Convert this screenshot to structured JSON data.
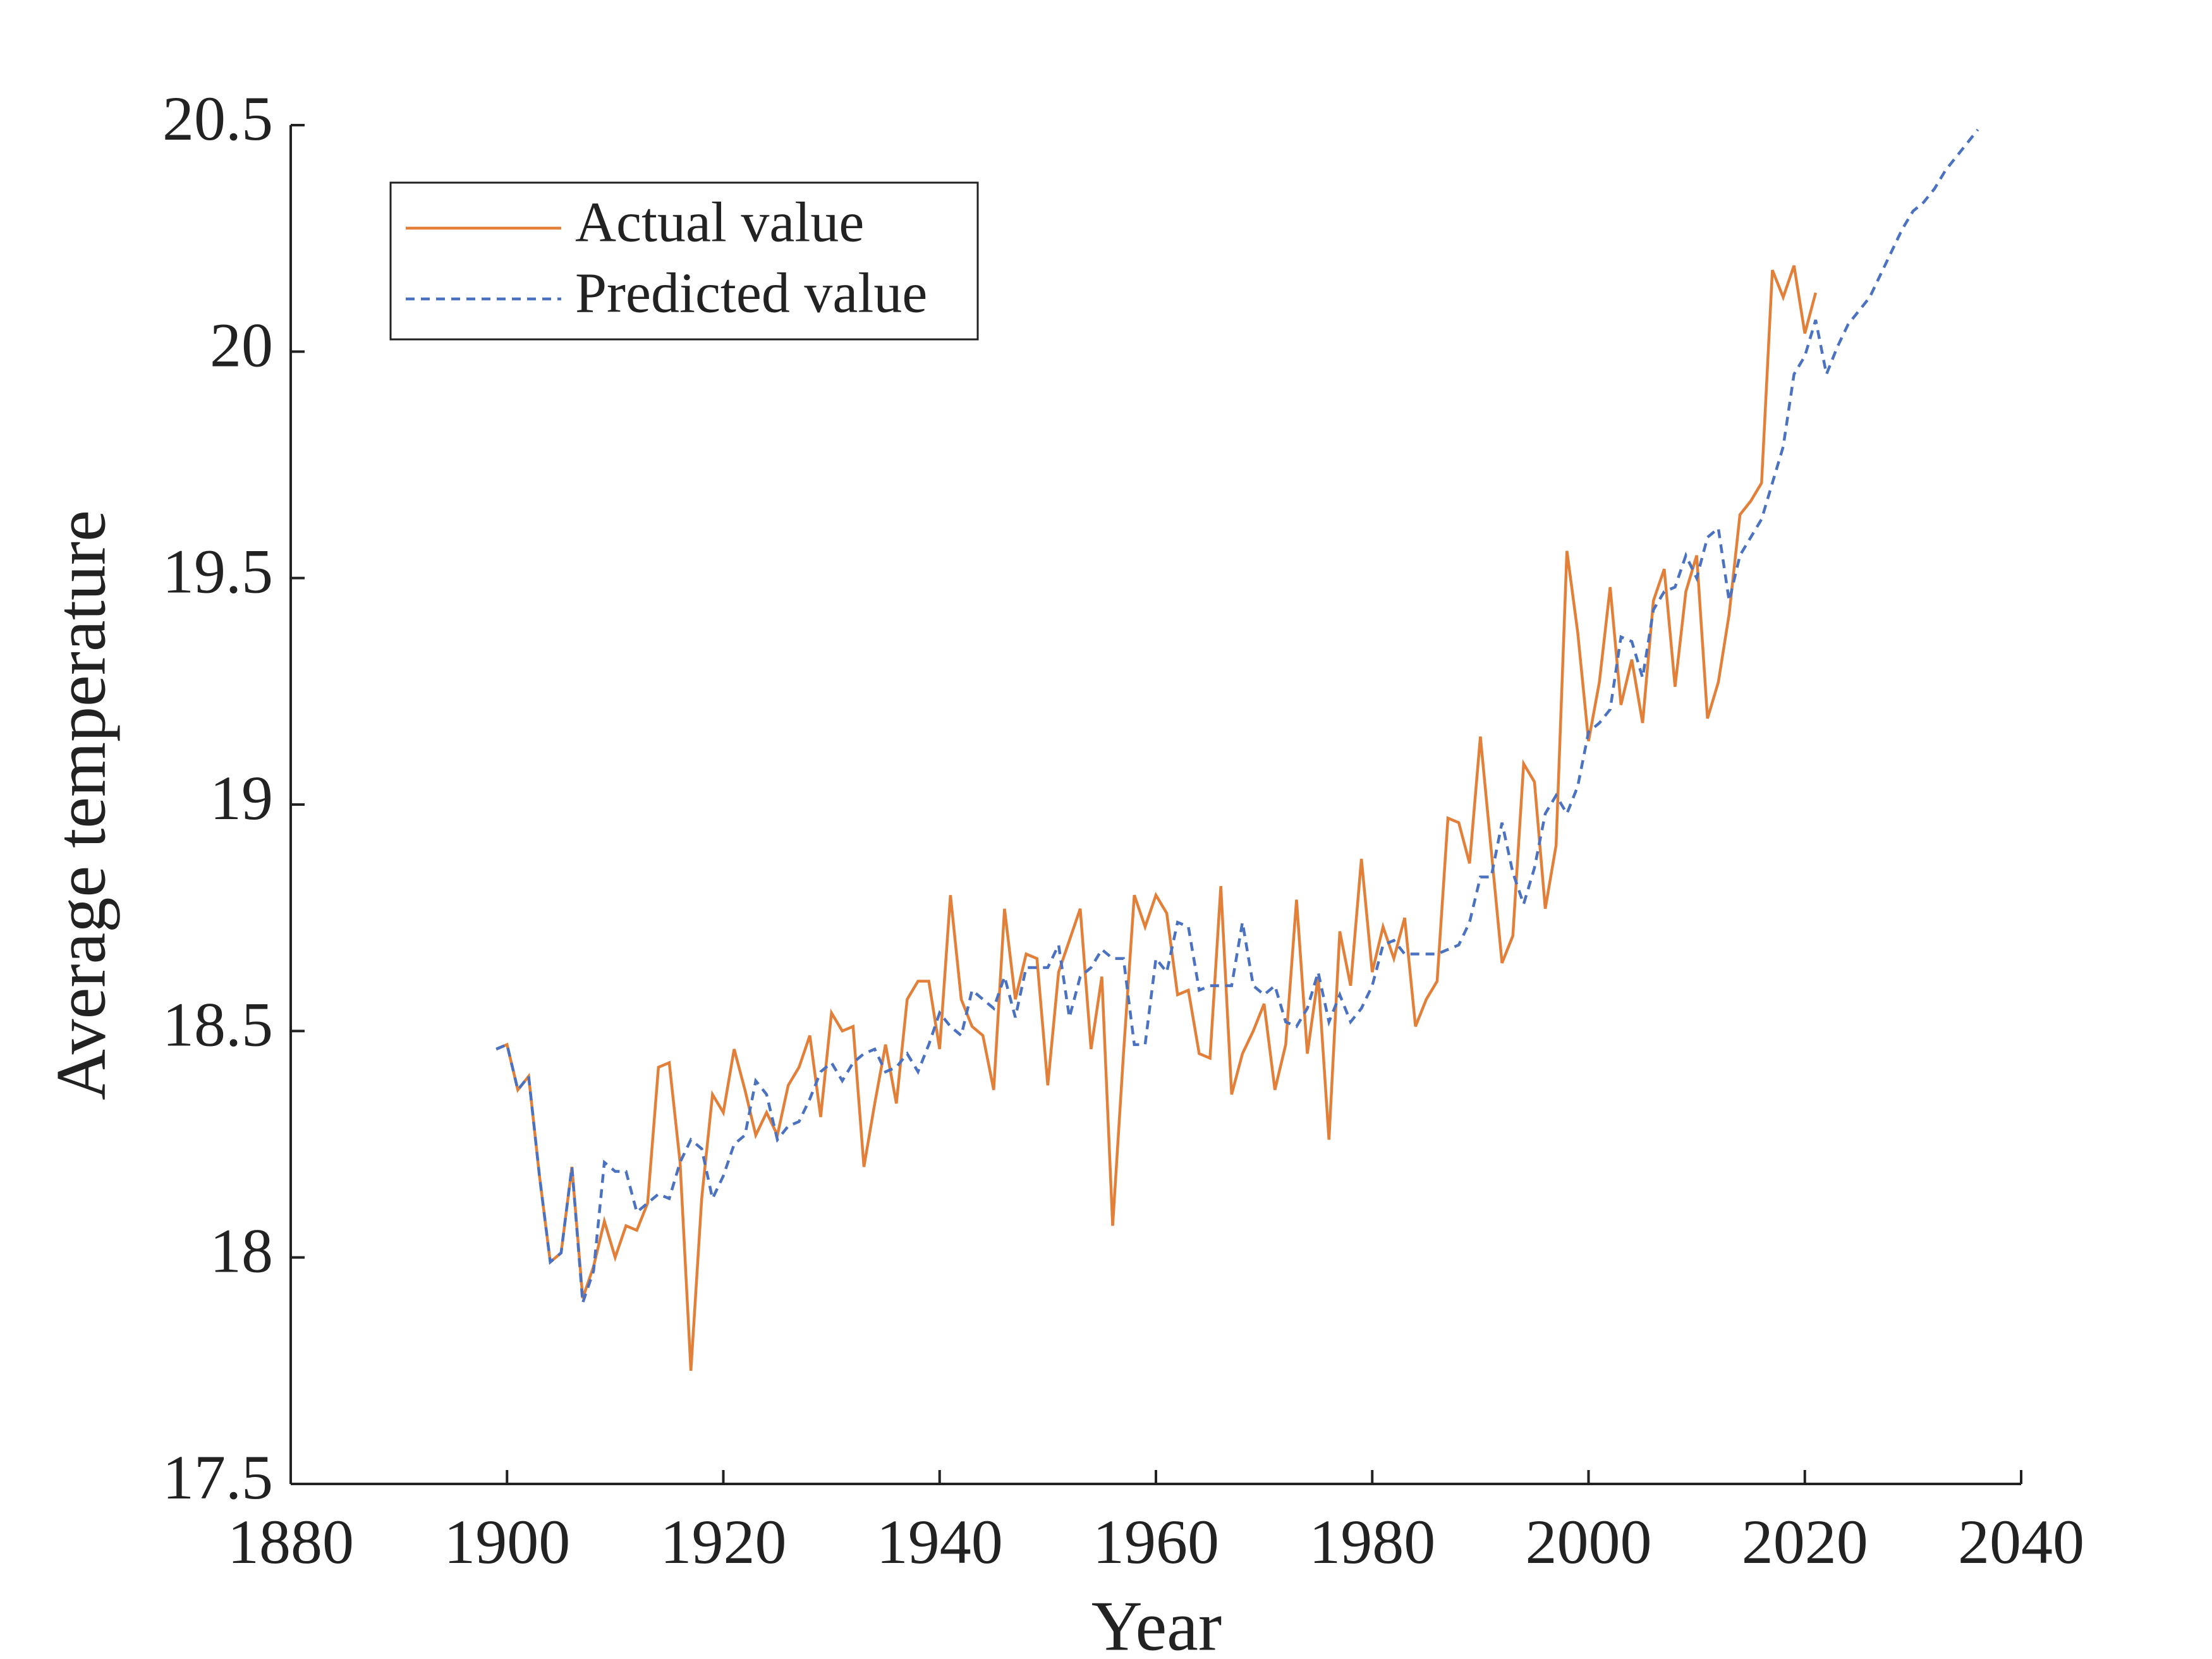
{
  "chart_data": {
    "type": "line",
    "xlabel": "Year",
    "ylabel": "Average temperature",
    "xlim": [
      1880,
      2040
    ],
    "xticks": [
      1880,
      1900,
      1920,
      1940,
      1960,
      1980,
      2000,
      2020,
      2040
    ],
    "ylim": [
      17.5,
      20.5
    ],
    "yticks": [
      17.5,
      18,
      18.5,
      19,
      19.5,
      20,
      20.5
    ],
    "legend": "upper left",
    "x": [
      1899,
      1900,
      1901,
      1902,
      1903,
      1904,
      1905,
      1906,
      1907,
      1908,
      1909,
      1910,
      1911,
      1912,
      1913,
      1914,
      1915,
      1916,
      1917,
      1918,
      1919,
      1920,
      1921,
      1922,
      1923,
      1924,
      1925,
      1926,
      1927,
      1928,
      1929,
      1930,
      1931,
      1932,
      1933,
      1934,
      1935,
      1936,
      1937,
      1938,
      1939,
      1940,
      1941,
      1942,
      1943,
      1944,
      1945,
      1946,
      1947,
      1948,
      1949,
      1950,
      1951,
      1952,
      1953,
      1954,
      1955,
      1956,
      1957,
      1958,
      1959,
      1960,
      1961,
      1962,
      1963,
      1964,
      1965,
      1966,
      1967,
      1968,
      1969,
      1970,
      1971,
      1972,
      1973,
      1974,
      1975,
      1976,
      1977,
      1978,
      1979,
      1980,
      1981,
      1982,
      1983,
      1984,
      1985,
      1986,
      1987,
      1988,
      1989,
      1990,
      1991,
      1992,
      1993,
      1994,
      1995,
      1996,
      1997,
      1998,
      1999,
      2000,
      2001,
      2002,
      2003,
      2004,
      2005,
      2006,
      2007,
      2008,
      2009,
      2010,
      2011,
      2012,
      2013,
      2014,
      2015,
      2016,
      2017,
      2018,
      2019,
      2020,
      2021,
      2022,
      2023,
      2024,
      2025,
      2026,
      2027,
      2028,
      2029,
      2030,
      2031,
      2032,
      2033,
      2034,
      2035,
      2036
    ],
    "series": [
      {
        "name": "Actual value",
        "color": "#e2803a",
        "dash": false,
        "values": [
          18.46,
          18.47,
          18.37,
          18.4,
          18.18,
          17.99,
          18.01,
          18.2,
          17.91,
          17.98,
          18.08,
          18.0,
          18.07,
          18.06,
          18.12,
          18.42,
          18.43,
          18.21,
          17.75,
          18.13,
          18.36,
          18.32,
          18.46,
          18.37,
          18.27,
          18.32,
          18.27,
          18.38,
          18.42,
          18.49,
          18.31,
          18.54,
          18.5,
          18.51,
          18.2,
          18.34,
          18.47,
          18.34,
          18.57,
          18.61,
          18.61,
          18.46,
          18.8,
          18.57,
          18.51,
          18.49,
          18.37,
          18.77,
          18.57,
          18.67,
          18.66,
          18.38,
          18.63,
          18.7,
          18.77,
          18.46,
          18.62,
          18.07,
          18.45,
          18.8,
          18.73,
          18.8,
          18.76,
          18.58,
          18.59,
          18.45,
          18.44,
          18.82,
          18.36,
          18.45,
          18.5,
          18.56,
          18.37,
          18.47,
          18.79,
          18.45,
          18.62,
          18.26,
          18.72,
          18.6,
          18.88,
          18.63,
          18.73,
          18.66,
          18.75,
          18.51,
          18.57,
          18.61,
          18.97,
          18.96,
          18.87,
          19.15,
          18.9,
          18.65,
          18.71,
          19.09,
          19.05,
          18.77,
          18.91,
          19.56,
          19.38,
          19.14,
          19.27,
          19.48,
          19.22,
          19.32,
          19.18,
          19.45,
          19.52,
          19.26,
          19.47,
          19.55,
          19.19,
          19.27,
          19.42,
          19.64,
          19.67,
          19.71,
          20.18,
          20.12,
          20.19,
          20.04,
          20.13,
          null,
          null,
          null,
          null,
          null,
          null,
          null,
          null,
          null,
          null,
          null,
          null,
          null,
          null,
          null
        ]
      },
      {
        "name": "Predicted value",
        "color": "#4a72c0",
        "dash": true,
        "values": [
          18.46,
          18.47,
          18.37,
          18.4,
          18.18,
          17.99,
          18.01,
          18.2,
          17.9,
          17.97,
          18.21,
          18.19,
          18.19,
          18.1,
          18.12,
          18.14,
          18.13,
          18.21,
          18.26,
          18.24,
          18.13,
          18.18,
          18.25,
          18.27,
          18.39,
          18.36,
          18.26,
          18.29,
          18.3,
          18.35,
          18.41,
          18.43,
          18.39,
          18.43,
          18.45,
          18.46,
          18.41,
          18.42,
          18.45,
          18.41,
          18.47,
          18.54,
          18.51,
          18.49,
          18.59,
          18.57,
          18.55,
          18.62,
          18.53,
          18.64,
          18.64,
          18.64,
          18.69,
          18.53,
          18.62,
          18.64,
          18.68,
          18.66,
          18.66,
          18.47,
          18.47,
          18.66,
          18.63,
          18.74,
          18.73,
          18.59,
          18.6,
          18.6,
          18.6,
          18.74,
          18.6,
          18.58,
          18.6,
          18.52,
          18.51,
          18.55,
          18.63,
          18.52,
          18.58,
          18.52,
          18.55,
          18.6,
          18.69,
          18.7,
          18.67,
          18.67,
          18.67,
          18.67,
          18.68,
          18.69,
          18.74,
          18.84,
          18.84,
          18.96,
          18.85,
          18.78,
          18.86,
          18.98,
          19.02,
          18.98,
          19.04,
          19.16,
          19.18,
          19.21,
          19.37,
          19.36,
          19.28,
          19.43,
          19.47,
          19.48,
          19.55,
          19.5,
          19.59,
          19.61,
          19.45,
          19.55,
          19.59,
          19.63,
          19.71,
          19.79,
          19.95,
          19.99,
          20.07,
          19.95,
          20.01,
          20.06,
          20.09,
          20.12,
          20.17,
          20.22,
          20.27,
          20.31,
          20.33,
          20.36,
          20.4,
          20.43,
          20.46,
          20.49
        ]
      }
    ]
  }
}
